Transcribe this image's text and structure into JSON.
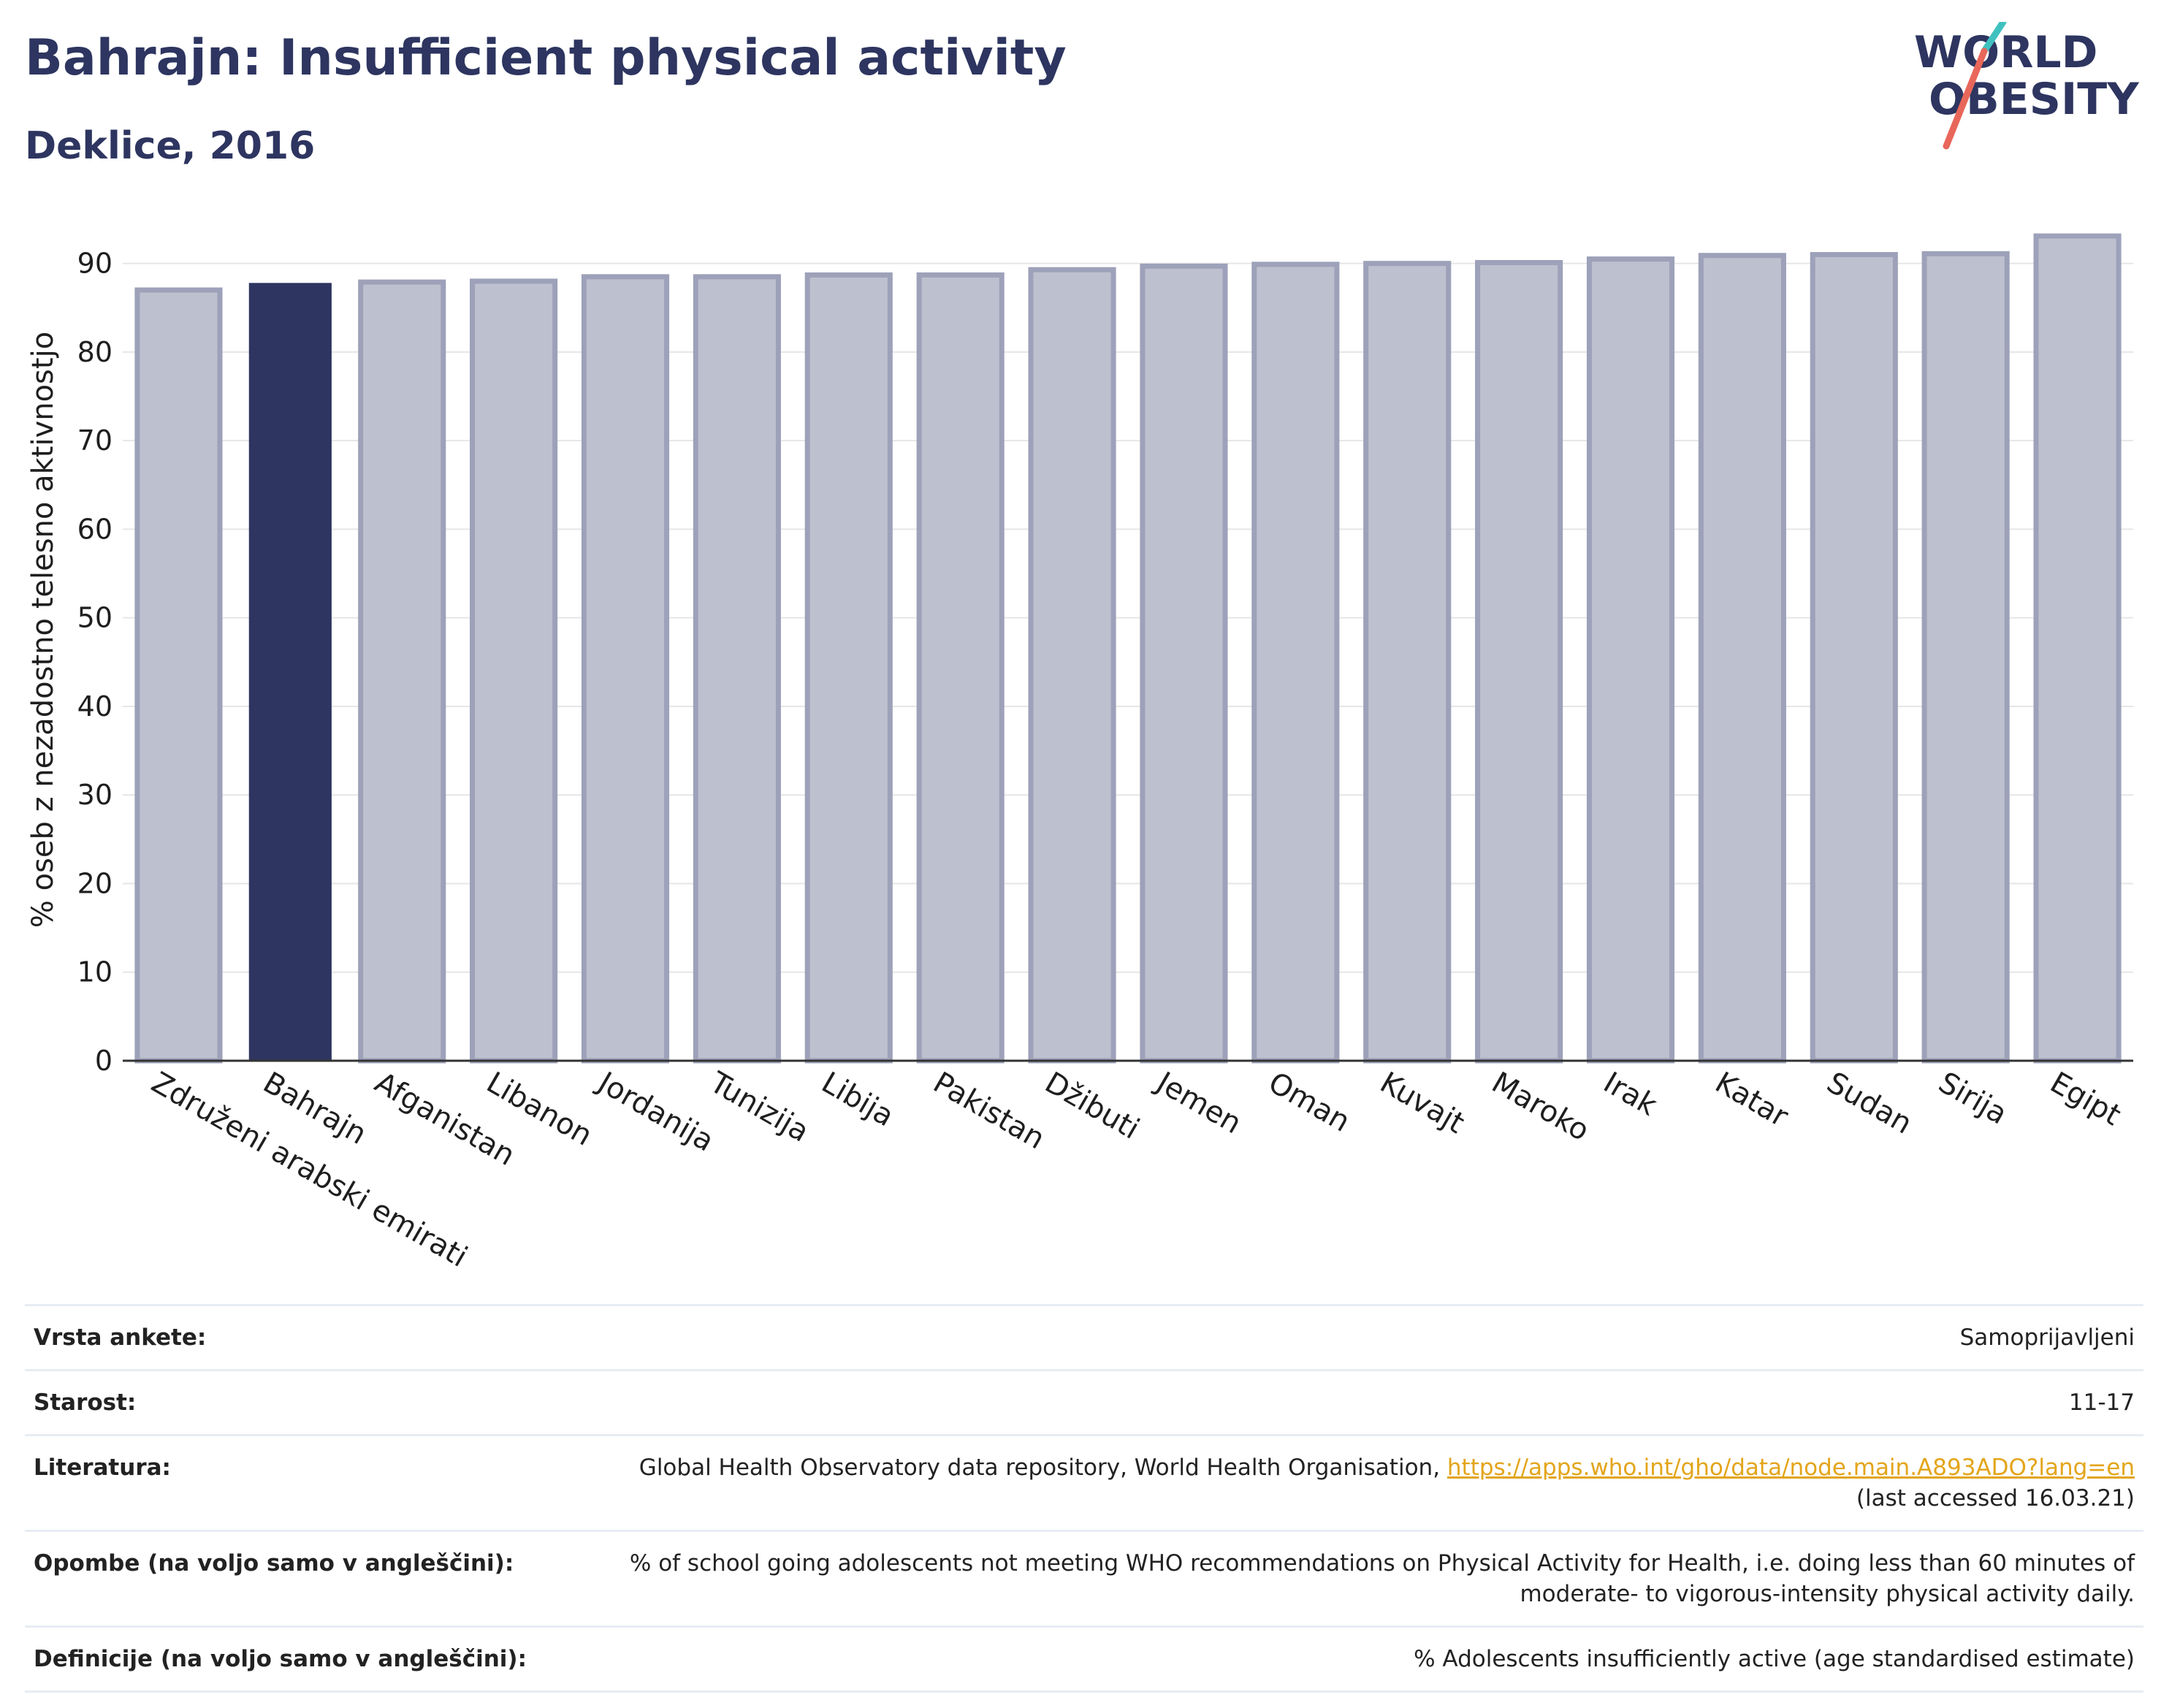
{
  "header": {
    "title": "Bahrajn: Insufficient physical activity",
    "subtitle": "Deklice, 2016"
  },
  "logo": {
    "line1": "WORLD",
    "line2": "OBESITY",
    "slash_colors": [
      "#3fc1c0",
      "#e8675a"
    ]
  },
  "chart_data": {
    "type": "bar",
    "title": "",
    "xlabel": "",
    "ylabel": "% oseb z nezadostno telesno aktivnostjo",
    "ylim": [
      0,
      95
    ],
    "yticks": [
      0,
      10,
      20,
      30,
      40,
      50,
      60,
      70,
      80,
      90
    ],
    "grid": true,
    "categories": [
      "Združeni arabski emirati",
      "Bahrajn",
      "Afganistan",
      "Libanon",
      "Jordanija",
      "Tunizija",
      "Libija",
      "Pakistan",
      "Džibuti",
      "Jemen",
      "Oman",
      "Kuvajt",
      "Maroko",
      "Irak",
      "Katar",
      "Sudan",
      "Sirija",
      "Egipt"
    ],
    "values": [
      87.0,
      87.8,
      87.9,
      88.0,
      88.5,
      88.5,
      88.7,
      88.7,
      89.3,
      89.7,
      89.9,
      90.0,
      90.1,
      90.5,
      90.9,
      91.0,
      91.1,
      93.1
    ],
    "highlight": "Bahrajn",
    "colors": {
      "bar": "#bdc0ce",
      "bar_edge": "#9da1b9",
      "highlight": "#2d3560",
      "grid": "#e6e6e6",
      "axis": "#333333"
    }
  },
  "info": {
    "rows": [
      {
        "label": "Vrsta ankete:",
        "value": "Samoprijavljeni"
      },
      {
        "label": "Starost:",
        "value": "11-17"
      },
      {
        "label": "Literatura:",
        "value": "Global Health Observatory data repository, World Health Organisation, ",
        "link": "https://apps.who.int/gho/data/node.main.A893ADO?lang=en",
        "value2": "(last accessed 16.03.21)"
      },
      {
        "label": "Opombe (na voljo samo v angleščini):",
        "value": "% of school going adolescents not meeting WHO recommendations on Physical Activity for Health, i.e. doing less than 60 minutes of",
        "value2": "moderate- to vigorous-intensity physical activity daily."
      },
      {
        "label": "Definicije (na voljo samo v angleščini):",
        "value": "% Adolescents insufficiently active (age standardised estimate)"
      }
    ]
  }
}
